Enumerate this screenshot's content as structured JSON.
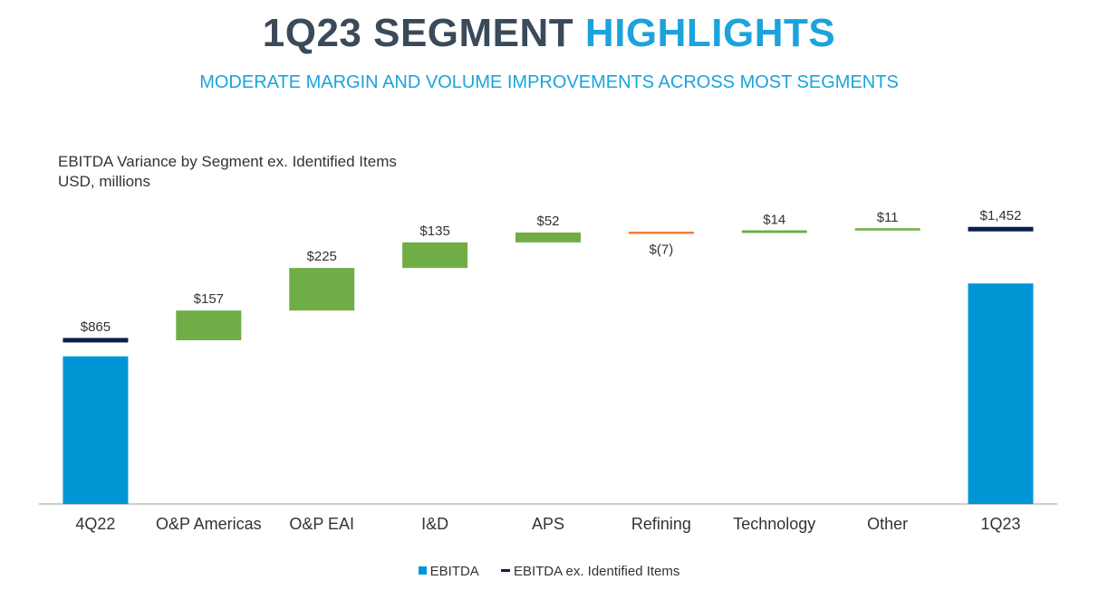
{
  "header": {
    "title_part1": "1Q23 SEGMENT",
    "title_part2": "HIGHLIGHTS",
    "subtitle": "MODERATE MARGIN AND VOLUME IMPROVEMENTS ACROSS MOST SEGMENTS"
  },
  "chart_data": {
    "type": "bar",
    "subtype": "waterfall",
    "title": "EBITDA Variance by Segment ex. Identified Items",
    "subtitle": "USD, millions",
    "categories": [
      "4Q22",
      "O&P Americas",
      "O&P EAI",
      "I&D",
      "APS",
      "Refining",
      "Technology",
      "Other",
      "1Q23"
    ],
    "series": [
      {
        "name": "EBITDA",
        "values": [
          780,
          null,
          null,
          null,
          null,
          null,
          null,
          null,
          1165
        ],
        "color": "#0096d6"
      },
      {
        "name": "EBITDA ex. Identified Items",
        "values": [
          865,
          null,
          null,
          null,
          null,
          null,
          null,
          null,
          1452
        ],
        "color": "#0a1f4d"
      }
    ],
    "changes": [
      null,
      157,
      225,
      135,
      52,
      -7,
      14,
      11,
      null
    ],
    "change_colors": {
      "positive": "#70ad47",
      "negative": "#ed7d31"
    },
    "data_labels": [
      "$865",
      "$157",
      "$225",
      "$135",
      "$52",
      "$(7)",
      "$14",
      "$11",
      "$1,452"
    ],
    "ylim": [
      0,
      1500
    ],
    "grid": false,
    "legend_position": "bottom"
  },
  "legend": {
    "items": [
      {
        "label": "EBITDA",
        "color": "#0096d6"
      },
      {
        "label": "EBITDA ex. Identified Items",
        "color": "#0a1f4d"
      }
    ]
  }
}
